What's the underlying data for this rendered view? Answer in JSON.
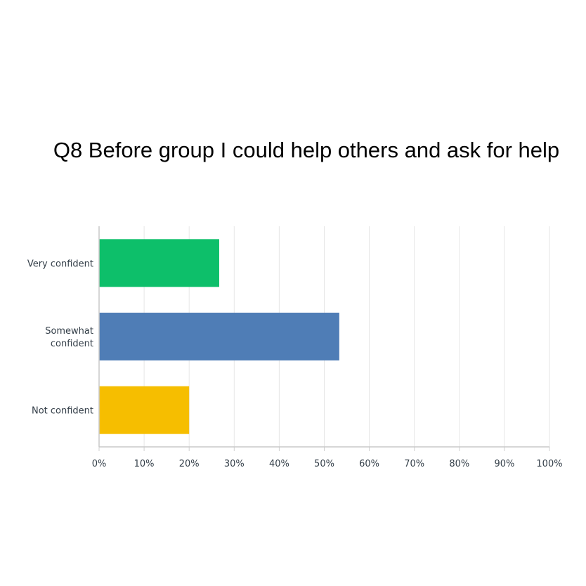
{
  "chart_data": {
    "type": "bar",
    "orientation": "horizontal",
    "title": "Q8 Before group I could help others and ask for help",
    "xlabel": "",
    "ylabel": "",
    "categories": [
      "Very confident",
      "Somewhat confident",
      "Not confident"
    ],
    "category_lines": [
      [
        "Very confident"
      ],
      [
        "Somewhat",
        "confident"
      ],
      [
        "Not confident"
      ]
    ],
    "values": [
      26.67,
      53.33,
      20.0
    ],
    "colors": [
      "#0dbf6a",
      "#4f7db6",
      "#f6be00"
    ],
    "xlim": [
      0,
      100
    ],
    "xticks": [
      "0%",
      "10%",
      "20%",
      "30%",
      "40%",
      "50%",
      "60%",
      "70%",
      "80%",
      "90%",
      "100%"
    ],
    "grid": true,
    "legend": "none"
  }
}
